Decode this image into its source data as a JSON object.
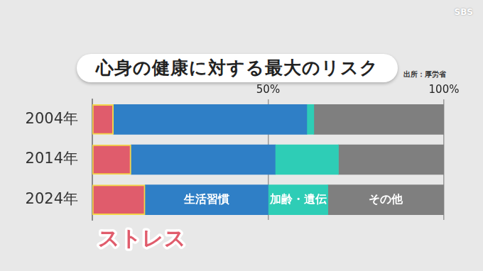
{
  "chart_data": {
    "type": "bar",
    "title": "心身の健康に対する最大のリスク",
    "source": "出所：厚労省",
    "logo": "SBS",
    "orientation": "horizontal",
    "stacked": true,
    "grid": true,
    "categories": [
      "2004年",
      "2014年",
      "2024年"
    ],
    "series": [
      {
        "name": "ストレス",
        "color": "#e05c6c",
        "values": [
          6,
          11,
          15
        ]
      },
      {
        "name": "生活習慣",
        "color": "#2f7fc6",
        "values": [
          55,
          41,
          35
        ]
      },
      {
        "name": "加齢・遺伝",
        "color": "#2ecdb6",
        "values": [
          2,
          18,
          17
        ]
      },
      {
        "name": "その他",
        "color": "#7f7f7f",
        "values": [
          37,
          30,
          33
        ]
      }
    ],
    "xlim": [
      0,
      100
    ],
    "xticks": [
      {
        "value": 50,
        "label": "50%"
      },
      {
        "value": 100,
        "label": "100%"
      }
    ]
  }
}
